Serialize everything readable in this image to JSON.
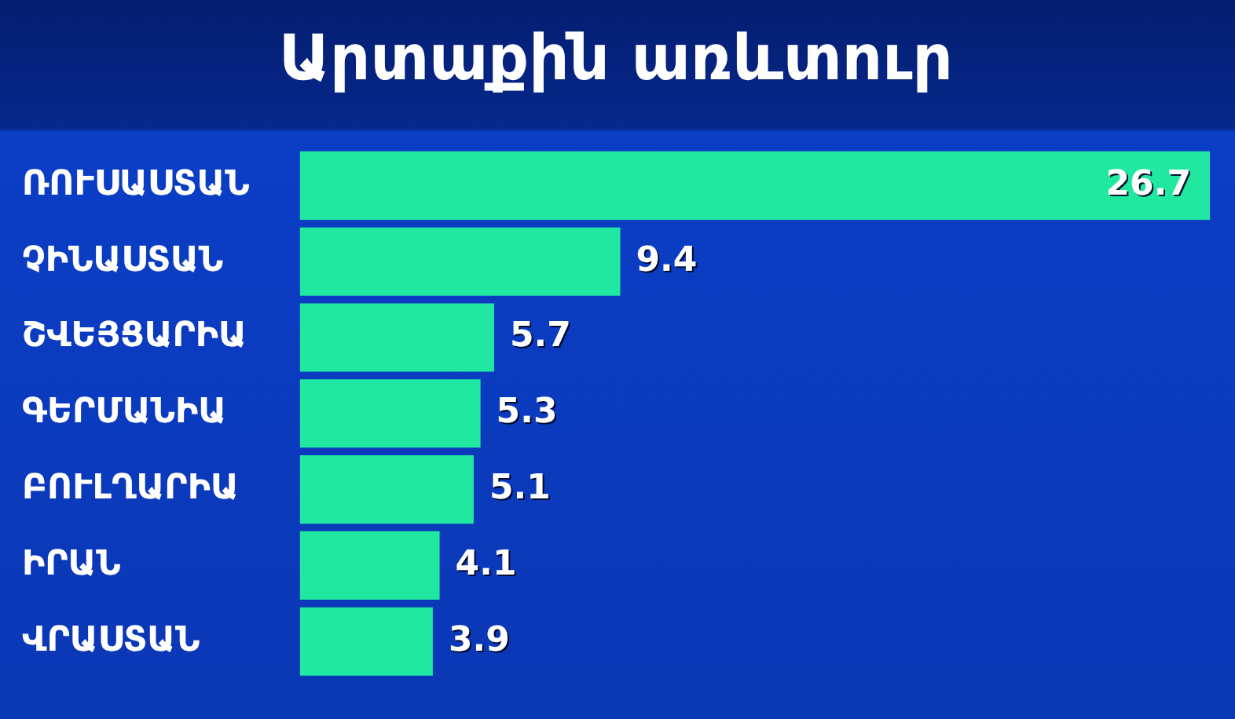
{
  "chart_data": {
    "type": "bar",
    "orientation": "horizontal",
    "title": "Արտաքին առևտուր",
    "categories": [
      "ՌՈՒՍԱՍՏԱՆ",
      "ՉԻՆԱՍՏԱՆ",
      "ՇՎԵՅՑԱՐԻԱ",
      "ԳԵՐՄԱՆԻԱ",
      "ԲՈՒԼՂԱՐԻԱ",
      "ԻՐԱՆ",
      "ՎՐԱՍՏԱՆ"
    ],
    "values": [
      26.7,
      9.4,
      5.7,
      5.3,
      5.1,
      4.1,
      3.9
    ],
    "color": "#20e8a0",
    "data_labels": true
  }
}
